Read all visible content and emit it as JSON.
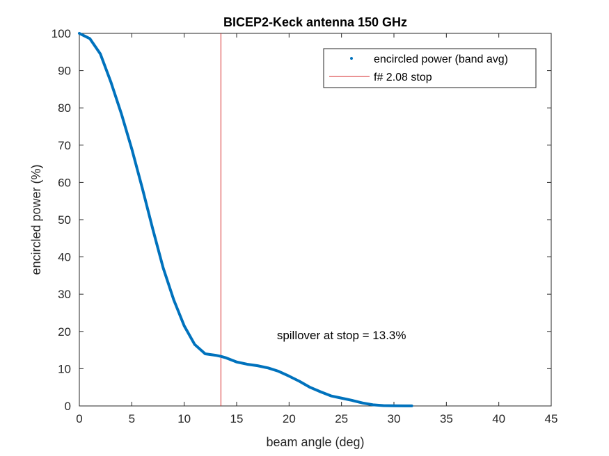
{
  "chart_data": {
    "type": "line",
    "title": "BICEP2-Keck antenna 150 GHz",
    "xlabel": "beam angle (deg)",
    "ylabel": "encircled power (%)",
    "xlim": [
      0,
      45
    ],
    "ylim": [
      0,
      100
    ],
    "xticks": [
      0,
      5,
      10,
      15,
      20,
      25,
      30,
      35,
      40,
      45
    ],
    "yticks": [
      0,
      10,
      20,
      30,
      40,
      50,
      60,
      70,
      80,
      90,
      100
    ],
    "grid": false,
    "legend_position": "top-right",
    "series": [
      {
        "name": "encircled power (band avg)",
        "color": "#0072BD",
        "x": [
          0,
          1,
          2,
          3,
          4,
          5,
          6,
          7,
          8,
          9,
          10,
          11,
          12,
          13,
          13.5,
          14,
          15,
          16,
          17,
          18,
          19,
          20,
          21,
          22,
          23,
          24,
          25,
          26,
          27,
          28,
          29,
          30,
          31,
          31.7
        ],
        "y": [
          100,
          98.6,
          94.5,
          87,
          78.5,
          69,
          58.5,
          47.5,
          37,
          28.5,
          21.5,
          16.5,
          14,
          13.6,
          13.3,
          12.9,
          11.8,
          11.2,
          10.8,
          10.2,
          9.3,
          8.0,
          6.6,
          5.0,
          3.8,
          2.7,
          2.1,
          1.5,
          0.8,
          0.3,
          0.1,
          0.05,
          0.02,
          0.02
        ]
      }
    ],
    "reference_lines": [
      {
        "name": "f# 2.08 stop",
        "color": "#D62728",
        "x": 13.5
      }
    ],
    "annotation": {
      "text": "spillover at stop = 13.3%",
      "x": 25,
      "y": 19
    }
  }
}
